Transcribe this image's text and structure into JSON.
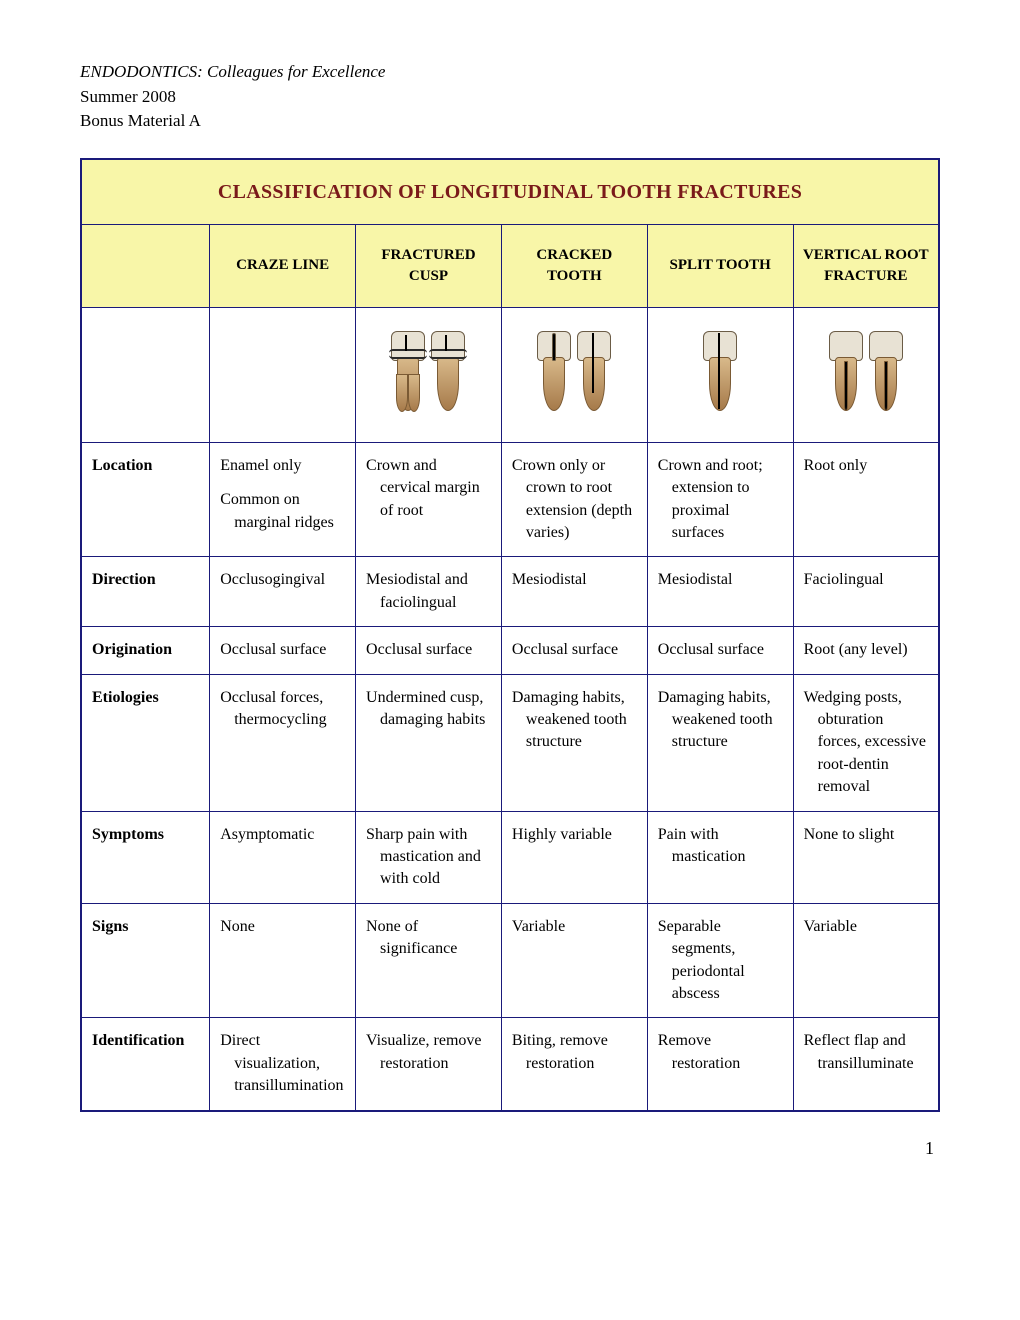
{
  "header": {
    "title": "ENDODONTICS: Colleagues for Excellence",
    "line2": "Summer 2008",
    "line3": "Bonus Material A"
  },
  "table": {
    "title": "CLASSIFICATION OF LONGITUDINAL TOOTH FRACTURES",
    "header_bg": "#f8f6a8",
    "border_color": "#1a1a7a",
    "title_color": "#7a1a1a",
    "columns": [
      "CRAZE LINE",
      "FRACTURED CUSP",
      "CRACKED TOOTH",
      "SPLIT TOOTH",
      "VERTICAL ROOT FRACTURE"
    ],
    "rows": [
      {
        "label": "Location",
        "cells": [
          [
            "Enamel only",
            "Common on marginal ridges"
          ],
          [
            "Crown and cervical margin of root"
          ],
          [
            "Crown only or crown to root extension (depth varies)"
          ],
          [
            "Crown and root; extension to proximal surfaces"
          ],
          [
            "Root only"
          ]
        ]
      },
      {
        "label": "Direction",
        "cells": [
          [
            "Occlusogingival"
          ],
          [
            "Mesiodistal and faciolingual"
          ],
          [
            "Mesiodistal"
          ],
          [
            "Mesiodistal"
          ],
          [
            "Faciolingual"
          ]
        ]
      },
      {
        "label": "Origination",
        "cells": [
          [
            "Occlusal surface"
          ],
          [
            "Occlusal surface"
          ],
          [
            "Occlusal surface"
          ],
          [
            "Occlusal surface"
          ],
          [
            "Root (any level)"
          ]
        ]
      },
      {
        "label": "Etiologies",
        "cells": [
          [
            "Occlusal forces, thermocycling"
          ],
          [
            "Undermined cusp, damaging habits"
          ],
          [
            "Damaging habits, weakened tooth structure"
          ],
          [
            "Damaging habits, weakened tooth structure"
          ],
          [
            "Wedging posts, obturation forces, excessive root-dentin removal"
          ]
        ]
      },
      {
        "label": "Symptoms",
        "cells": [
          [
            "Asymptomatic"
          ],
          [
            "Sharp pain with mastication and with cold"
          ],
          [
            "Highly variable"
          ],
          [
            "Pain with mastication"
          ],
          [
            "None to slight"
          ]
        ]
      },
      {
        "label": "Signs",
        "cells": [
          [
            "None"
          ],
          [
            "None of significance"
          ],
          [
            "Variable"
          ],
          [
            "Separable segments, periodontal abscess"
          ],
          [
            "Variable"
          ]
        ]
      },
      {
        "label": "Identification",
        "cells": [
          [
            "Direct visualization, transillumination"
          ],
          [
            "Visualize, remove restoration"
          ],
          [
            "Biting, remove restoration"
          ],
          [
            "Remove restoration"
          ],
          [
            "Reflect flap and transilluminate"
          ]
        ]
      }
    ]
  },
  "page_number": "1"
}
